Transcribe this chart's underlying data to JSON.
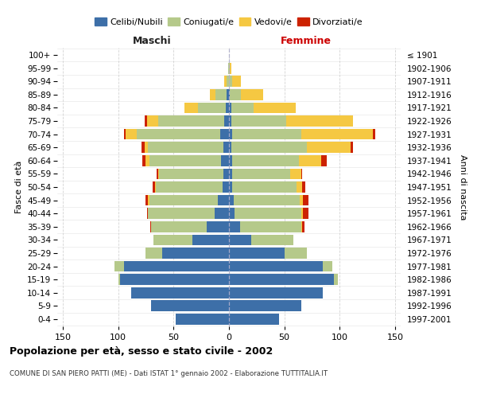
{
  "age_groups": [
    "0-4",
    "5-9",
    "10-14",
    "15-19",
    "20-24",
    "25-29",
    "30-34",
    "35-39",
    "40-44",
    "45-49",
    "50-54",
    "55-59",
    "60-64",
    "65-69",
    "70-74",
    "75-79",
    "80-84",
    "85-89",
    "90-94",
    "95-99",
    "100+"
  ],
  "birth_years": [
    "1997-2001",
    "1992-1996",
    "1987-1991",
    "1982-1986",
    "1977-1981",
    "1972-1976",
    "1967-1971",
    "1962-1966",
    "1957-1961",
    "1952-1956",
    "1947-1951",
    "1942-1946",
    "1937-1941",
    "1932-1936",
    "1927-1931",
    "1922-1926",
    "1917-1921",
    "1912-1916",
    "1907-1911",
    "1902-1906",
    "≤ 1901"
  ],
  "maschi": {
    "celibi": [
      48,
      70,
      88,
      98,
      95,
      60,
      33,
      20,
      13,
      10,
      6,
      5,
      7,
      5,
      8,
      4,
      3,
      2,
      0,
      0,
      0
    ],
    "coniugati": [
      0,
      0,
      0,
      2,
      8,
      15,
      35,
      50,
      60,
      62,
      60,
      58,
      65,
      68,
      75,
      60,
      25,
      10,
      2,
      1,
      0
    ],
    "vedovi": [
      0,
      0,
      0,
      0,
      0,
      0,
      0,
      0,
      0,
      1,
      1,
      1,
      3,
      3,
      10,
      10,
      12,
      5,
      2,
      0,
      0
    ],
    "divorziati": [
      0,
      0,
      0,
      0,
      0,
      0,
      0,
      1,
      1,
      2,
      2,
      1,
      3,
      3,
      2,
      2,
      0,
      0,
      0,
      0,
      0
    ]
  },
  "femmine": {
    "nubili": [
      45,
      65,
      85,
      95,
      85,
      50,
      20,
      10,
      5,
      4,
      3,
      3,
      3,
      2,
      3,
      2,
      2,
      1,
      0,
      0,
      0
    ],
    "coniugate": [
      0,
      0,
      0,
      3,
      8,
      20,
      38,
      55,
      60,
      60,
      58,
      52,
      60,
      68,
      62,
      50,
      20,
      10,
      3,
      1,
      0
    ],
    "vedove": [
      0,
      0,
      0,
      0,
      0,
      0,
      0,
      1,
      2,
      3,
      5,
      10,
      20,
      40,
      65,
      60,
      38,
      20,
      8,
      1,
      0
    ],
    "divorziate": [
      0,
      0,
      0,
      0,
      0,
      0,
      0,
      2,
      5,
      5,
      3,
      1,
      5,
      2,
      2,
      0,
      0,
      0,
      0,
      0,
      0
    ]
  },
  "colors": {
    "celibi": "#3d6fa8",
    "coniugati": "#b5c98a",
    "vedovi": "#f5c842",
    "divorziati": "#cc2200"
  },
  "xlim": 155,
  "title": "Popolazione per età, sesso e stato civile - 2002",
  "subtitle": "COMUNE DI SAN PIERO PATTI (ME) - Dati ISTAT 1° gennaio 2002 - Elaborazione TUTTITALIA.IT",
  "ylabel_left": "Fasce di età",
  "ylabel_right": "Anni di nascita",
  "xlabel_left": "Maschi",
  "xlabel_right": "Femmine",
  "bg_color": "#ffffff",
  "grid_color": "#c8c8c8"
}
